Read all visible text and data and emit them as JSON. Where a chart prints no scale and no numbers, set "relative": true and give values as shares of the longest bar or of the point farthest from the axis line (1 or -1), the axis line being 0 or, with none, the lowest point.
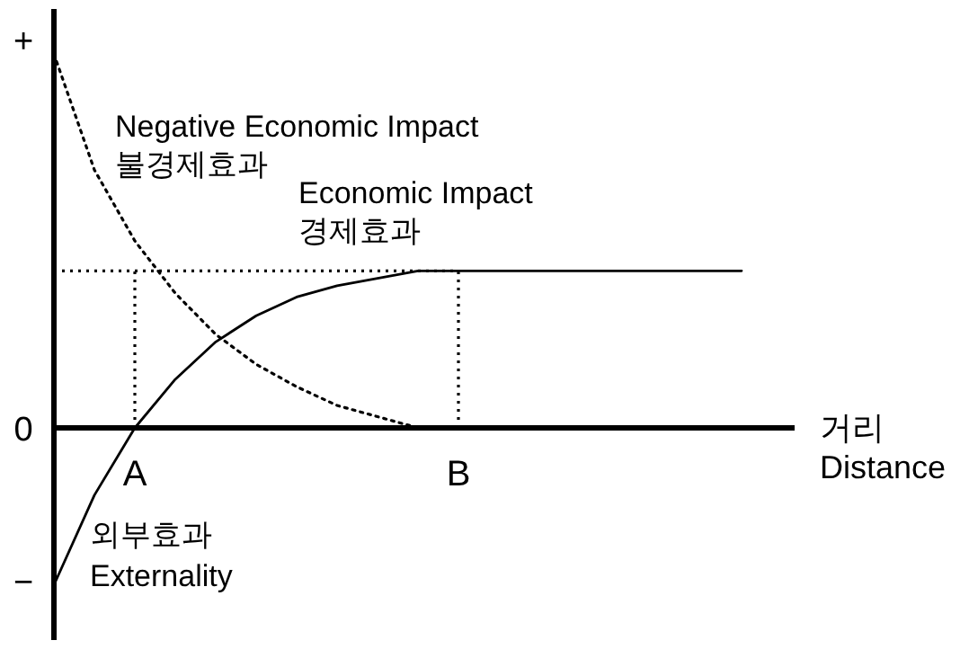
{
  "chart_data": {
    "type": "line",
    "relative": true,
    "xlabel": "거리\nDistance",
    "categories": [
      null,
      null,
      "A",
      null,
      null,
      null,
      null,
      null,
      null,
      null,
      "B",
      null,
      null,
      null,
      null,
      null,
      null,
      null
    ],
    "series": [
      {
        "name": "Negative Economic Impact\n불경제효과",
        "color": "#000000",
        "line_style": "dotted",
        "values": [
          1.0,
          0.69,
          0.5,
          0.36,
          0.25,
          0.17,
          0.11,
          0.06,
          0.03,
          0,
          null,
          null,
          null,
          null,
          null,
          null,
          null,
          null
        ]
      },
      {
        "name": "Economic Impact\n경제효과",
        "color": "#000000",
        "line_style": "solid",
        "values": [
          -0.42,
          -0.18,
          0,
          0.13,
          0.23,
          0.3,
          0.35,
          0.38,
          0.4,
          0.42,
          0.42,
          0.42,
          0.42,
          0.42,
          0.42,
          0.42,
          0.42,
          0.42
        ]
      }
    ],
    "ref_lines": [
      {
        "axis": "y",
        "value": 0.42,
        "line_style": "dotted"
      },
      {
        "axis": "x",
        "value": "A",
        "line_style": "dotted"
      },
      {
        "axis": "x",
        "value": "B",
        "line_style": "dotted"
      }
    ],
    "annotations": [
      "+",
      "0",
      "−",
      "외부효과\nExternality"
    ]
  }
}
